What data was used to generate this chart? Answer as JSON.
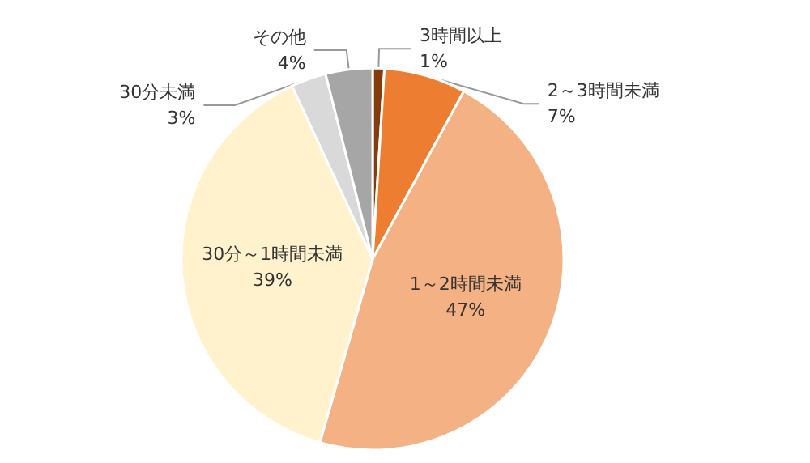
{
  "chart_data": {
    "type": "pie",
    "categories": [
      "3時間以上",
      "2～3時間未満",
      "1～2時間未満",
      "30分～1時間未満",
      "30分未満",
      "その他"
    ],
    "values": [
      1,
      7,
      47,
      39,
      3,
      4
    ],
    "value_labels": [
      "1%",
      "7%",
      "47%",
      "39%",
      "3%",
      "4%"
    ],
    "colors": [
      "#843c0c",
      "#ed7d31",
      "#f4b183",
      "#fff2cc",
      "#d9d9d9",
      "#a6a6a6"
    ],
    "legend": false
  }
}
